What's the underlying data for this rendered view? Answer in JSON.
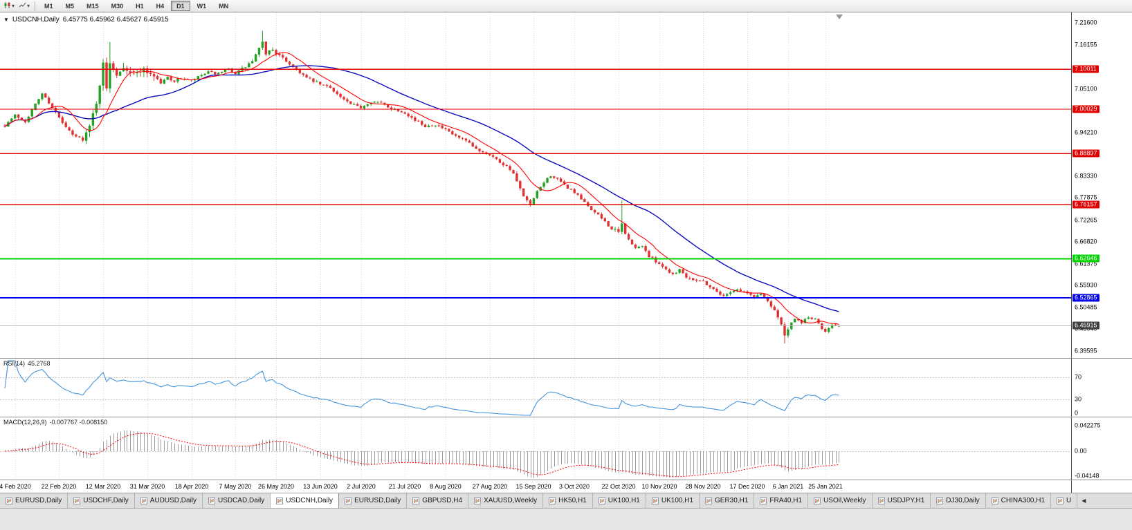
{
  "toolbar": {
    "timeframes": [
      {
        "label": "M1",
        "active": false
      },
      {
        "label": "M5",
        "active": false
      },
      {
        "label": "M15",
        "active": false
      },
      {
        "label": "M30",
        "active": false
      },
      {
        "label": "H1",
        "active": false
      },
      {
        "label": "H4",
        "active": false
      },
      {
        "label": "D1",
        "active": true
      },
      {
        "label": "W1",
        "active": false
      },
      {
        "label": "MN",
        "active": false
      }
    ]
  },
  "chart": {
    "title": "USDCNH,Daily",
    "quote_string": "6.45775 6.45962 6.45627 6.45915"
  },
  "colors": {
    "candle_up": "#23a123",
    "candle_down": "#e03232",
    "ma_fast": "#ff0000",
    "ma_slow": "#0b0bc0",
    "rsi_line": "#4394dc",
    "macd_hist": "#9c9c9c",
    "macd_signal": "#ff0000",
    "bid_line": "#b8b8b8",
    "current_label_bg": "#3f3f3f",
    "grid": "#d9d9d9"
  },
  "chart_data": {
    "type": "candlestick",
    "symbol": "USDCNH",
    "period": "Daily",
    "quote": {
      "open": 6.45775,
      "high": 6.45962,
      "low": 6.45627,
      "close": 6.45915
    },
    "candle_count": 247,
    "price_range": [
      6.3787,
      7.2419
    ],
    "current_price": 6.45915,
    "current_price_label": "6.45915",
    "y_ticks": [
      "7.21600",
      "7.16155",
      "7.05100",
      "6.94210",
      "6.83330",
      "6.77875",
      "6.72265",
      "6.66820",
      "6.61375",
      "6.55930",
      "6.50485",
      "6.45040",
      "6.39595"
    ],
    "levels": [
      {
        "label": "7.10011",
        "value": 7.10011,
        "color": "#e00000",
        "width": 1.4
      },
      {
        "label": "7.00029",
        "value": 7.00029,
        "color": "#e00000",
        "width": 1.4
      },
      {
        "label": "6.88897",
        "value": 6.88897,
        "color": "#e00000",
        "width": 1.4
      },
      {
        "label": "6.76157",
        "value": 6.76157,
        "color": "#e00000",
        "width": 1.4
      },
      {
        "label": "6.62646",
        "value": 6.62646,
        "color": "#00d300",
        "width": 1.6
      },
      {
        "label": "6.52865",
        "value": 6.52865,
        "color": "#0000e6",
        "width": 1.8
      }
    ],
    "x_labels": [
      [
        "4 Feb 2020",
        3
      ],
      [
        "22 Feb 2020",
        16
      ],
      [
        "12 Mar 2020",
        29
      ],
      [
        "31 Mar 2020",
        42
      ],
      [
        "18 Apr 2020",
        55
      ],
      [
        "7 May 2020",
        68
      ],
      [
        "26 May 2020",
        80
      ],
      [
        "13 Jun 2020",
        93
      ],
      [
        "2 Jul 2020",
        105
      ],
      [
        "21 Jul 2020",
        118
      ],
      [
        "8 Aug 2020",
        130
      ],
      [
        "27 Aug 2020",
        143
      ],
      [
        "15 Sep 2020",
        156
      ],
      [
        "3 Oct 2020",
        168
      ],
      [
        "22 Oct 2020",
        181
      ],
      [
        "10 Nov 2020",
        193
      ],
      [
        "28 Nov 2020",
        206
      ],
      [
        "17 Dec 2020",
        219
      ],
      [
        "6 Jan 2021",
        231
      ],
      [
        "25 Jan 2021",
        242
      ]
    ],
    "trend_anchors": [
      [
        0,
        6.96
      ],
      [
        3,
        6.985
      ],
      [
        6,
        6.97
      ],
      [
        11,
        7.04
      ],
      [
        14,
        7.005
      ],
      [
        17,
        6.965
      ],
      [
        20,
        6.935
      ],
      [
        23,
        6.925
      ],
      [
        25,
        6.955
      ],
      [
        27,
        7.02
      ],
      [
        29,
        7.11
      ],
      [
        30,
        7.05
      ],
      [
        31,
        7.12
      ],
      [
        33,
        7.09
      ],
      [
        35,
        7.11
      ],
      [
        38,
        7.085
      ],
      [
        40,
        7.1
      ],
      [
        42,
        7.095
      ],
      [
        44,
        7.085
      ],
      [
        46,
        7.065
      ],
      [
        48,
        7.08
      ],
      [
        50,
        7.07
      ],
      [
        52,
        7.078
      ],
      [
        55,
        7.07
      ],
      [
        58,
        7.085
      ],
      [
        60,
        7.092
      ],
      [
        63,
        7.088
      ],
      [
        66,
        7.1
      ],
      [
        68,
        7.09
      ],
      [
        70,
        7.1
      ],
      [
        73,
        7.12
      ],
      [
        75,
        7.15
      ],
      [
        76,
        7.165
      ],
      [
        77,
        7.14
      ],
      [
        79,
        7.15
      ],
      [
        81,
        7.132
      ],
      [
        83,
        7.12
      ],
      [
        86,
        7.1
      ],
      [
        89,
        7.078
      ],
      [
        93,
        7.062
      ],
      [
        96,
        7.055
      ],
      [
        99,
        7.03
      ],
      [
        102,
        7.012
      ],
      [
        105,
        7.005
      ],
      [
        108,
        7.02
      ],
      [
        111,
        7.015
      ],
      [
        114,
        7.002
      ],
      [
        118,
        6.992
      ],
      [
        121,
        6.972
      ],
      [
        124,
        6.958
      ],
      [
        127,
        6.962
      ],
      [
        130,
        6.948
      ],
      [
        133,
        6.932
      ],
      [
        136,
        6.92
      ],
      [
        139,
        6.9
      ],
      [
        143,
        6.888
      ],
      [
        146,
        6.868
      ],
      [
        149,
        6.852
      ],
      [
        151,
        6.82
      ],
      [
        153,
        6.78
      ],
      [
        155,
        6.76
      ],
      [
        157,
        6.792
      ],
      [
        159,
        6.818
      ],
      [
        161,
        6.835
      ],
      [
        163,
        6.824
      ],
      [
        165,
        6.81
      ],
      [
        168,
        6.792
      ],
      [
        171,
        6.766
      ],
      [
        174,
        6.742
      ],
      [
        177,
        6.72
      ],
      [
        179,
        6.7
      ],
      [
        181,
        6.692
      ],
      [
        182,
        6.712
      ],
      [
        184,
        6.672
      ],
      [
        186,
        6.652
      ],
      [
        188,
        6.66
      ],
      [
        190,
        6.632
      ],
      [
        193,
        6.615
      ],
      [
        195,
        6.6
      ],
      [
        197,
        6.588
      ],
      [
        199,
        6.6
      ],
      [
        201,
        6.582
      ],
      [
        203,
        6.576
      ],
      [
        206,
        6.57
      ],
      [
        208,
        6.556
      ],
      [
        210,
        6.545
      ],
      [
        212,
        6.532
      ],
      [
        214,
        6.545
      ],
      [
        216,
        6.55
      ],
      [
        219,
        6.54
      ],
      [
        221,
        6.53
      ],
      [
        223,
        6.54
      ],
      [
        225,
        6.52
      ],
      [
        227,
        6.5
      ],
      [
        229,
        6.462
      ],
      [
        230,
        6.432
      ],
      [
        231,
        6.452
      ],
      [
        233,
        6.474
      ],
      [
        235,
        6.468
      ],
      [
        237,
        6.48
      ],
      [
        239,
        6.474
      ],
      [
        241,
        6.452
      ],
      [
        242,
        6.446
      ],
      [
        244,
        6.464
      ],
      [
        246,
        6.459
      ]
    ],
    "wick_overrides": [
      [
        31,
        "h",
        7.168
      ],
      [
        76,
        "h",
        7.196
      ],
      [
        182,
        "h",
        6.772
      ],
      [
        230,
        "l",
        6.415
      ]
    ],
    "volatility_zones": [
      [
        24,
        44,
        0.026
      ],
      [
        70,
        82,
        0.013
      ],
      [
        148,
        158,
        0.012
      ],
      [
        179,
        184,
        0.014
      ],
      [
        226,
        233,
        0.012
      ]
    ],
    "moving_averages": [
      {
        "period": 10,
        "color": "#ff0000",
        "width": 1.1
      },
      {
        "period": 34,
        "color": "#0b0bc0",
        "width": 1.4
      }
    ],
    "indicators": {
      "rsi": {
        "label": "RSI(14)",
        "value": "45.2768",
        "levels": [
          70,
          30
        ],
        "axis": [
          [
            "70",
            70
          ],
          [
            "30",
            30
          ],
          [
            "0",
            0
          ]
        ],
        "range": [
          -1.25,
          103.75
        ]
      },
      "macd": {
        "label": "MACD(12,26,9)",
        "values": "-0.007767 -0.008150",
        "fast": 12,
        "slow": 26,
        "signal": 9,
        "axis": [
          [
            "0.042275",
            0.042275
          ],
          [
            "0.00",
            0
          ],
          [
            "-0.04148",
            -0.04148
          ]
        ],
        "range": [
          -0.047,
          0.056
        ]
      }
    }
  },
  "tabs": [
    {
      "label": "EURUSD,Daily",
      "active": false
    },
    {
      "label": "USDCHF,Daily",
      "active": false
    },
    {
      "label": "AUDUSD,Daily",
      "active": false
    },
    {
      "label": "USDCAD,Daily",
      "active": false
    },
    {
      "label": "USDCNH,Daily",
      "active": true
    },
    {
      "label": "EURUSD,Daily",
      "active": false
    },
    {
      "label": "GBPUSD,H4",
      "active": false
    },
    {
      "label": "XAUUSD,Weekly",
      "active": false
    },
    {
      "label": "HK50,H1",
      "active": false
    },
    {
      "label": "UK100,H1",
      "active": false
    },
    {
      "label": "UK100,H1",
      "active": false
    },
    {
      "label": "GER30,H1",
      "active": false
    },
    {
      "label": "FRA40,H1",
      "active": false
    },
    {
      "label": "USOil,Weekly",
      "active": false
    },
    {
      "label": "USDJPY,H1",
      "active": false
    },
    {
      "label": "DJ30,Daily",
      "active": false
    },
    {
      "label": "CHINA300,H1",
      "active": false
    },
    {
      "label": "U",
      "active": false
    }
  ]
}
